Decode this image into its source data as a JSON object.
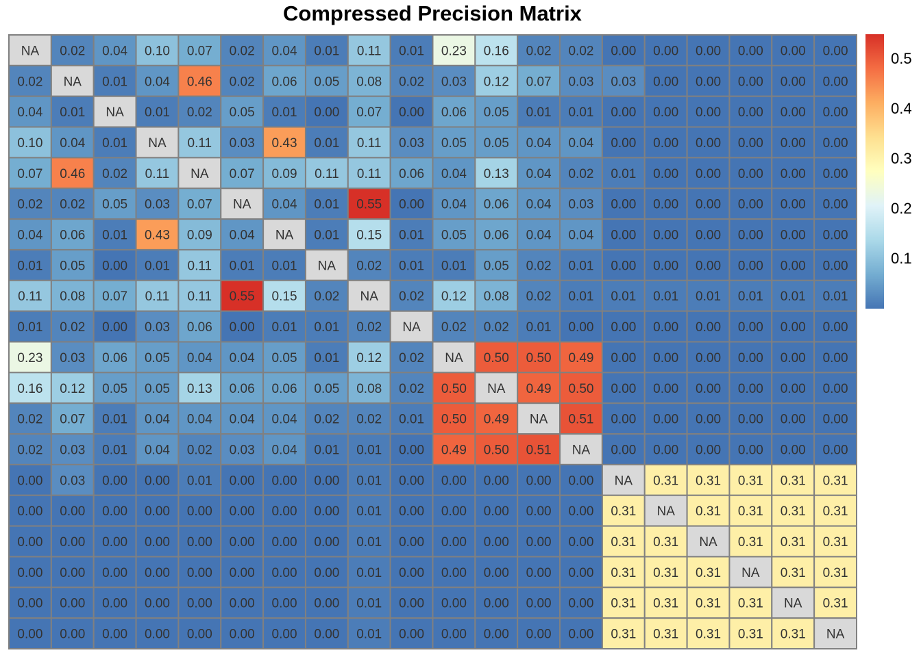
{
  "chart_data": {
    "type": "heatmap",
    "title": "Compressed Precision Matrix",
    "rows": 20,
    "cols": 20,
    "values": [
      [
        "NA",
        "0.02",
        "0.04",
        "0.10",
        "0.07",
        "0.02",
        "0.04",
        "0.01",
        "0.11",
        "0.01",
        "0.23",
        "0.16",
        "0.02",
        "0.02",
        "0.00",
        "0.00",
        "0.00",
        "0.00",
        "0.00",
        "0.00"
      ],
      [
        "0.02",
        "NA",
        "0.01",
        "0.04",
        "0.46",
        "0.02",
        "0.06",
        "0.05",
        "0.08",
        "0.02",
        "0.03",
        "0.12",
        "0.07",
        "0.03",
        "0.03",
        "0.00",
        "0.00",
        "0.00",
        "0.00",
        "0.00"
      ],
      [
        "0.04",
        "0.01",
        "NA",
        "0.01",
        "0.02",
        "0.05",
        "0.01",
        "0.00",
        "0.07",
        "0.00",
        "0.06",
        "0.05",
        "0.01",
        "0.01",
        "0.00",
        "0.00",
        "0.00",
        "0.00",
        "0.00",
        "0.00"
      ],
      [
        "0.10",
        "0.04",
        "0.01",
        "NA",
        "0.11",
        "0.03",
        "0.43",
        "0.01",
        "0.11",
        "0.03",
        "0.05",
        "0.05",
        "0.04",
        "0.04",
        "0.00",
        "0.00",
        "0.00",
        "0.00",
        "0.00",
        "0.00"
      ],
      [
        "0.07",
        "0.46",
        "0.02",
        "0.11",
        "NA",
        "0.07",
        "0.09",
        "0.11",
        "0.11",
        "0.06",
        "0.04",
        "0.13",
        "0.04",
        "0.02",
        "0.01",
        "0.00",
        "0.00",
        "0.00",
        "0.00",
        "0.00"
      ],
      [
        "0.02",
        "0.02",
        "0.05",
        "0.03",
        "0.07",
        "NA",
        "0.04",
        "0.01",
        "0.55",
        "0.00",
        "0.04",
        "0.06",
        "0.04",
        "0.03",
        "0.00",
        "0.00",
        "0.00",
        "0.00",
        "0.00",
        "0.00"
      ],
      [
        "0.04",
        "0.06",
        "0.01",
        "0.43",
        "0.09",
        "0.04",
        "NA",
        "0.01",
        "0.15",
        "0.01",
        "0.05",
        "0.06",
        "0.04",
        "0.04",
        "0.00",
        "0.00",
        "0.00",
        "0.00",
        "0.00",
        "0.00"
      ],
      [
        "0.01",
        "0.05",
        "0.00",
        "0.01",
        "0.11",
        "0.01",
        "0.01",
        "NA",
        "0.02",
        "0.01",
        "0.01",
        "0.05",
        "0.02",
        "0.01",
        "0.00",
        "0.00",
        "0.00",
        "0.00",
        "0.00",
        "0.00"
      ],
      [
        "0.11",
        "0.08",
        "0.07",
        "0.11",
        "0.11",
        "0.55",
        "0.15",
        "0.02",
        "NA",
        "0.02",
        "0.12",
        "0.08",
        "0.02",
        "0.01",
        "0.01",
        "0.01",
        "0.01",
        "0.01",
        "0.01",
        "0.01"
      ],
      [
        "0.01",
        "0.02",
        "0.00",
        "0.03",
        "0.06",
        "0.00",
        "0.01",
        "0.01",
        "0.02",
        "NA",
        "0.02",
        "0.02",
        "0.01",
        "0.00",
        "0.00",
        "0.00",
        "0.00",
        "0.00",
        "0.00",
        "0.00"
      ],
      [
        "0.23",
        "0.03",
        "0.06",
        "0.05",
        "0.04",
        "0.04",
        "0.05",
        "0.01",
        "0.12",
        "0.02",
        "NA",
        "0.50",
        "0.50",
        "0.49",
        "0.00",
        "0.00",
        "0.00",
        "0.00",
        "0.00",
        "0.00"
      ],
      [
        "0.16",
        "0.12",
        "0.05",
        "0.05",
        "0.13",
        "0.06",
        "0.06",
        "0.05",
        "0.08",
        "0.02",
        "0.50",
        "NA",
        "0.49",
        "0.50",
        "0.00",
        "0.00",
        "0.00",
        "0.00",
        "0.00",
        "0.00"
      ],
      [
        "0.02",
        "0.07",
        "0.01",
        "0.04",
        "0.04",
        "0.04",
        "0.04",
        "0.02",
        "0.02",
        "0.01",
        "0.50",
        "0.49",
        "NA",
        "0.51",
        "0.00",
        "0.00",
        "0.00",
        "0.00",
        "0.00",
        "0.00"
      ],
      [
        "0.02",
        "0.03",
        "0.01",
        "0.04",
        "0.02",
        "0.03",
        "0.04",
        "0.01",
        "0.01",
        "0.00",
        "0.49",
        "0.50",
        "0.51",
        "NA",
        "0.00",
        "0.00",
        "0.00",
        "0.00",
        "0.00",
        "0.00"
      ],
      [
        "0.00",
        "0.03",
        "0.00",
        "0.00",
        "0.01",
        "0.00",
        "0.00",
        "0.00",
        "0.01",
        "0.00",
        "0.00",
        "0.00",
        "0.00",
        "0.00",
        "NA",
        "0.31",
        "0.31",
        "0.31",
        "0.31",
        "0.31"
      ],
      [
        "0.00",
        "0.00",
        "0.00",
        "0.00",
        "0.00",
        "0.00",
        "0.00",
        "0.00",
        "0.01",
        "0.00",
        "0.00",
        "0.00",
        "0.00",
        "0.00",
        "0.31",
        "NA",
        "0.31",
        "0.31",
        "0.31",
        "0.31"
      ],
      [
        "0.00",
        "0.00",
        "0.00",
        "0.00",
        "0.00",
        "0.00",
        "0.00",
        "0.00",
        "0.01",
        "0.00",
        "0.00",
        "0.00",
        "0.00",
        "0.00",
        "0.31",
        "0.31",
        "NA",
        "0.31",
        "0.31",
        "0.31"
      ],
      [
        "0.00",
        "0.00",
        "0.00",
        "0.00",
        "0.00",
        "0.00",
        "0.00",
        "0.00",
        "0.01",
        "0.00",
        "0.00",
        "0.00",
        "0.00",
        "0.00",
        "0.31",
        "0.31",
        "0.31",
        "NA",
        "0.31",
        "0.31"
      ],
      [
        "0.00",
        "0.00",
        "0.00",
        "0.00",
        "0.00",
        "0.00",
        "0.00",
        "0.00",
        "0.01",
        "0.00",
        "0.00",
        "0.00",
        "0.00",
        "0.00",
        "0.31",
        "0.31",
        "0.31",
        "0.31",
        "NA",
        "0.31"
      ],
      [
        "0.00",
        "0.00",
        "0.00",
        "0.00",
        "0.00",
        "0.00",
        "0.00",
        "0.00",
        "0.01",
        "0.00",
        "0.00",
        "0.00",
        "0.00",
        "0.00",
        "0.31",
        "0.31",
        "0.31",
        "0.31",
        "0.31",
        "NA"
      ]
    ],
    "na_label": "NA",
    "color_scale": {
      "domain": [
        0.0,
        0.55
      ],
      "ticks": [
        "0.1",
        "0.2",
        "0.3",
        "0.4",
        "0.5"
      ],
      "tick_values": [
        0.1,
        0.2,
        0.3,
        0.4,
        0.5
      ],
      "stops": [
        "#4575b4",
        "#74add1",
        "#abd9e9",
        "#e0f3f8",
        "#ffffbf",
        "#fee090",
        "#fdae61",
        "#f46d43",
        "#d73027"
      ],
      "na_color": "#d9d9d9",
      "grid_color": "#808080"
    },
    "legend": "right"
  }
}
